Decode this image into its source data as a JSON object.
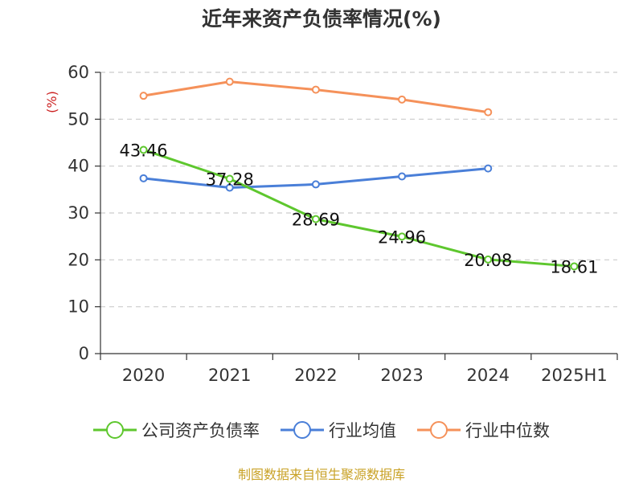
{
  "chart_data": {
    "type": "line",
    "title": "近年来资产负债率情况(%)",
    "ylabel": "(%)",
    "categories": [
      "2020",
      "2021",
      "2022",
      "2023",
      "2024",
      "2025H1"
    ],
    "ylim": [
      0,
      60
    ],
    "yticks": [
      "0",
      "10",
      "20",
      "30",
      "40",
      "50",
      "60"
    ],
    "grid": true,
    "legend_position": "bottom",
    "series": [
      {
        "name": "公司资产负债率",
        "color": "#5ec72e",
        "values": [
          43.46,
          37.28,
          28.69,
          24.96,
          20.08,
          18.61
        ],
        "labels": [
          "43.46",
          "37.28",
          "28.69",
          "24.96",
          "20.08",
          "18.61"
        ]
      },
      {
        "name": "行业均值",
        "color": "#4a7fd8",
        "values": [
          37.4,
          35.4,
          36.1,
          37.8,
          39.5,
          null
        ]
      },
      {
        "name": "行业中位数",
        "color": "#f5915a",
        "values": [
          55.0,
          58.0,
          56.3,
          54.2,
          51.5,
          null
        ]
      }
    ]
  },
  "footer": {
    "source": "制图数据来自恒生聚源数据库"
  }
}
